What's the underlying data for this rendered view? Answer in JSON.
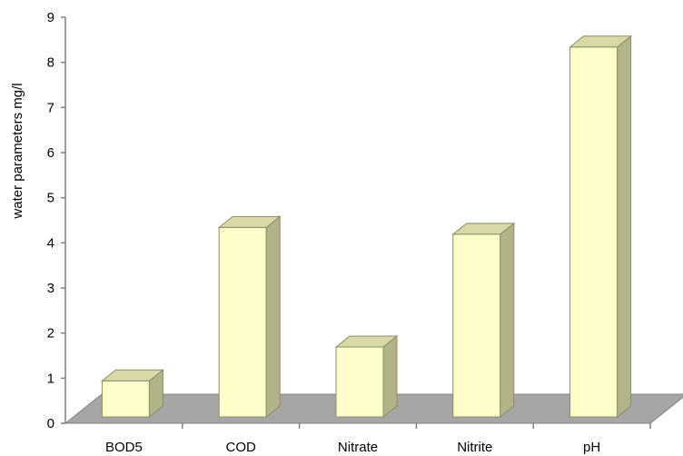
{
  "chart_data": {
    "type": "bar",
    "title": "",
    "xlabel": "",
    "ylabel": "water parameters mg/l",
    "categories": [
      "BOD5",
      "COD",
      "Nitrate",
      "Nitrite",
      "pH"
    ],
    "values": [
      0.8,
      4.2,
      1.55,
      4.05,
      8.2
    ],
    "ylim": [
      0,
      9
    ],
    "yticks": [
      0,
      1,
      2,
      3,
      4,
      5,
      6,
      7,
      8,
      9
    ],
    "style": "3d-column",
    "grid": false,
    "legend": "none",
    "colors": {
      "bar_front": "#ffffcc",
      "bar_side": "#b3b38a",
      "bar_top": "#d9d9a8",
      "bar_stroke": "#8c8c66",
      "floor": "#a6a6a6",
      "axis": "#808080"
    }
  }
}
